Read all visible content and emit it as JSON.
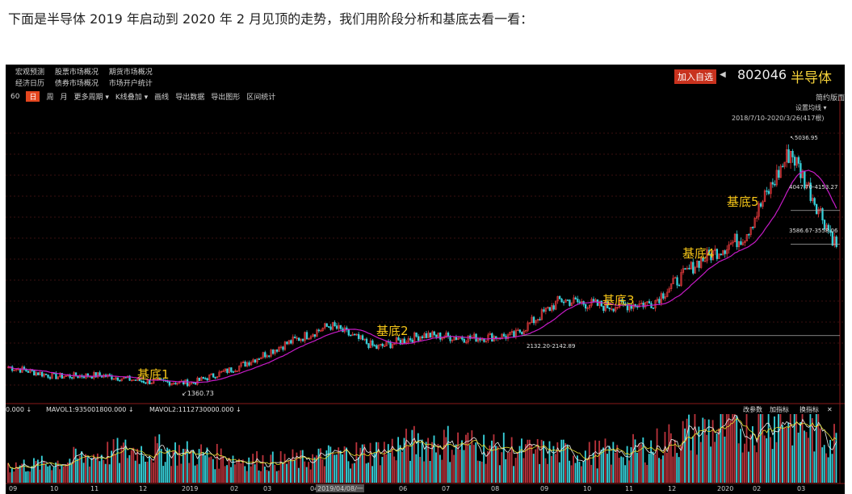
{
  "intro": "下面是半导体 2019 年启动到 2020 年 2 月见顶的走势，我们用阶段分析和基底去看一看：",
  "menu_row1": [
    "宏观预测",
    "股票市场概况",
    "期货市场概况"
  ],
  "menu_row2": [
    "经济日历",
    "债券市场概况",
    "市场开户统计"
  ],
  "toolbar": [
    "60",
    "日",
    "周",
    "月",
    "更多周期 ▾",
    "K线叠加 ▾",
    "画线",
    "导出数据",
    "导出图形",
    "区间统计"
  ],
  "toolbar_active": "日",
  "add_watch": "加入自选",
  "stock_code": "802046",
  "stock_name": "半导体",
  "simple_view": "简约版面",
  "settings_ma": "设置均线 ▾",
  "date_range": "2018/7/10-2020/3/26(417根)",
  "annotations": {
    "peak": "↖5036.95",
    "low": "↙1360.73",
    "range1": "2132.20-2142.89",
    "range2": "4047.70-4153.27",
    "range3": "3586.67-3558.06",
    "base1": "基底1",
    "base2": "基底2",
    "base3": "基底3",
    "base4": "基底4",
    "base5": "基底5"
  },
  "volume_legend": {
    "vol": "0.000 ↓",
    "mavol1": "MAVOL1:935001800.000 ↓",
    "mavol2": "MAVOL2:1112730000.000 ↓"
  },
  "volume_buttons": [
    "改参数",
    "加指标",
    "换指标",
    "✕"
  ],
  "x_axis_labels": [
    "09",
    "10",
    "11",
    "12",
    "2019",
    "02",
    "03",
    "04",
    "2019/04/08/一",
    "06",
    "07",
    "08",
    "09",
    "10",
    "11",
    "12",
    "2020",
    "02",
    "03"
  ],
  "colors": {
    "up": "#e0383b",
    "down": "#37d0d9",
    "ma": "#c71bc7",
    "base_label": "#f5c518",
    "mavol1": "#f0f0f0",
    "mavol2": "#e8e030"
  },
  "chart_data": {
    "type": "candlestick",
    "title": "802046 半导体",
    "price_path": [
      [
        "2018-09",
        1650
      ],
      [
        "2018-10",
        1500
      ],
      [
        "2018-11",
        1520
      ],
      [
        "2018-12",
        1420
      ],
      [
        "2019-01",
        1400
      ],
      [
        "2019-02",
        1650
      ],
      [
        "2019-03",
        2000
      ],
      [
        "2019-04",
        2300
      ],
      [
        "2019-05",
        1950
      ],
      [
        "2019-06",
        2150
      ],
      [
        "2019-07",
        2100
      ],
      [
        "2019-08",
        2140
      ],
      [
        "2019-09",
        2700
      ],
      [
        "2019-10",
        2600
      ],
      [
        "2019-11",
        2650
      ],
      [
        "2019-12",
        3300
      ],
      [
        "2020-01",
        3700
      ],
      [
        "2020-02",
        5036.95
      ],
      [
        "2020-03",
        3550
      ]
    ],
    "labeled_values": {
      "peak": 5036.95,
      "low": 1360.73
    }
  }
}
